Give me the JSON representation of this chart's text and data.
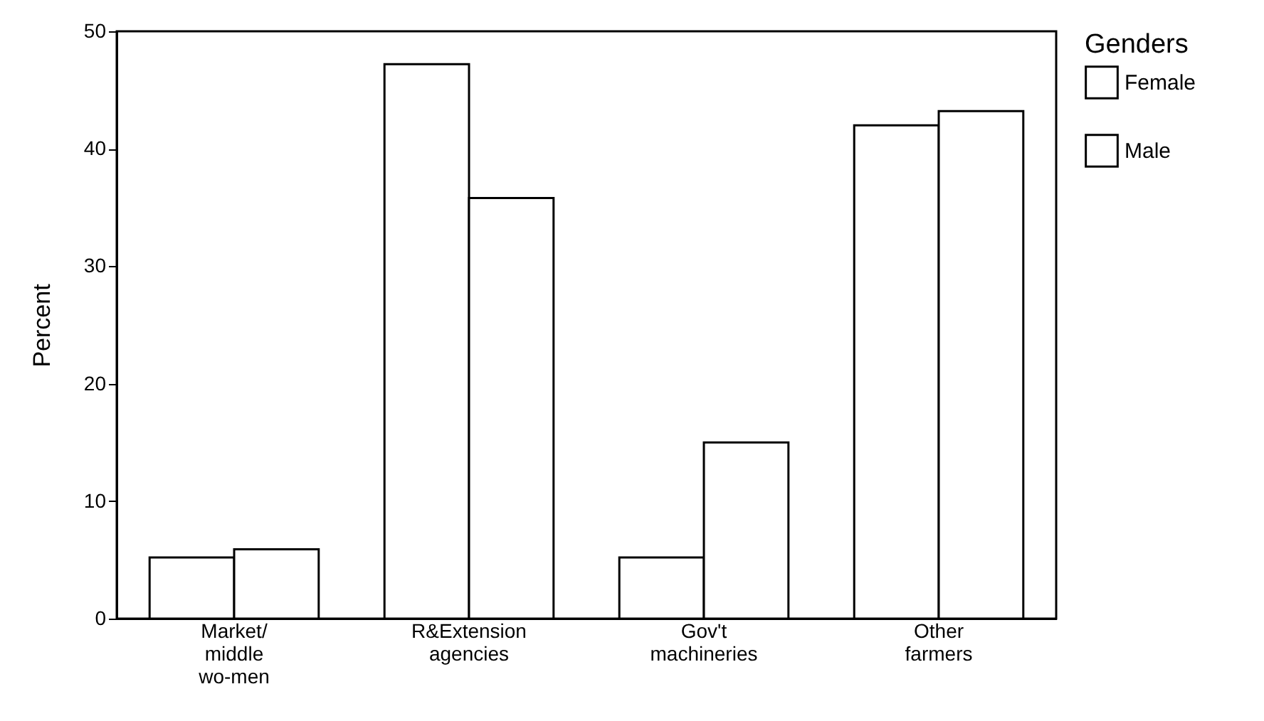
{
  "chart_data": {
    "type": "bar",
    "ylabel": "Percent",
    "legend_title": "Genders",
    "categories": [
      "Market/\nmiddle\nwo-men",
      "R&Extension\nagencies",
      "Gov't\nmachineries",
      "Other\nfarmers"
    ],
    "series": [
      {
        "name": "Female",
        "color": "#ffffff",
        "values": [
          5.2,
          47.2,
          5.2,
          42.0
        ]
      },
      {
        "name": "Male",
        "color": "#ffffff",
        "values": [
          5.9,
          35.8,
          15.0,
          43.2
        ]
      }
    ],
    "ylim": [
      0,
      50
    ],
    "yticks": [
      0,
      10,
      20,
      30,
      40,
      50
    ],
    "grid": false,
    "legend": "right"
  }
}
